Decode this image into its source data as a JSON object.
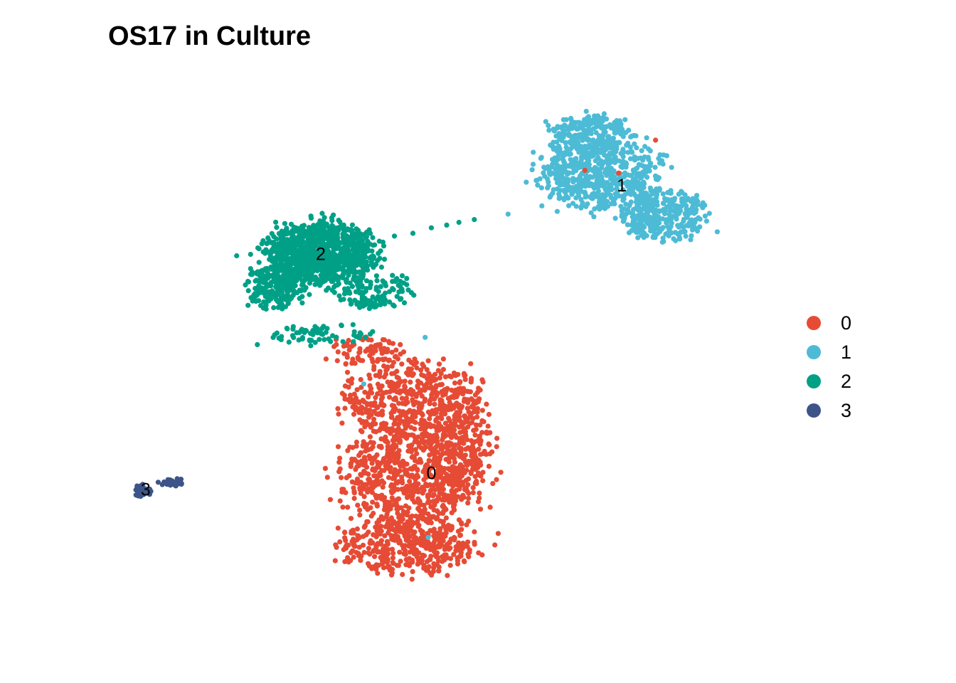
{
  "chart_data": {
    "type": "scatter",
    "title": "OS17 in Culture",
    "xlabel": "",
    "ylabel": "",
    "xlim": [
      -10,
      12
    ],
    "ylim": [
      -10,
      10
    ],
    "grid": false,
    "axes_visible": false,
    "legend_position": "right",
    "legend": {
      "entries": [
        {
          "label": "0",
          "color": "#E64B35"
        },
        {
          "label": "1",
          "color": "#4DBBD5"
        },
        {
          "label": "2",
          "color": "#00A087"
        },
        {
          "label": "3",
          "color": "#3C5488"
        }
      ]
    },
    "cluster_labels": [
      {
        "text": "0",
        "x": 0.8,
        "y": -4.2
      },
      {
        "text": "1",
        "x": 7.0,
        "y": 6.3
      },
      {
        "text": "2",
        "x": -2.8,
        "y": 3.8
      },
      {
        "text": "3",
        "x": -8.5,
        "y": -4.8
      }
    ],
    "clusters": [
      {
        "name": "0",
        "color": "#E64B35",
        "n": 1900,
        "blobs": [
          {
            "cx": 0.1,
            "cy": -1.4,
            "rx": 2.2,
            "ry": 1.4,
            "w": 0.22
          },
          {
            "cx": 0.2,
            "cy": -4.2,
            "rx": 2.3,
            "ry": 1.9,
            "w": 0.38
          },
          {
            "cx": 1.7,
            "cy": -3.0,
            "rx": 1.0,
            "ry": 2.0,
            "w": 0.14
          },
          {
            "cx": 0.0,
            "cy": -6.8,
            "rx": 2.2,
            "ry": 1.0,
            "w": 0.22
          },
          {
            "cx": -1.4,
            "cy": 0.3,
            "rx": 1.3,
            "ry": 0.5,
            "w": 0.04
          }
        ]
      },
      {
        "name": "1",
        "color": "#4DBBD5",
        "n": 1150,
        "blobs": [
          {
            "cx": 6.3,
            "cy": 6.8,
            "rx": 1.9,
            "ry": 1.3,
            "w": 0.52
          },
          {
            "cx": 8.3,
            "cy": 5.3,
            "rx": 1.3,
            "ry": 0.9,
            "w": 0.3
          },
          {
            "cx": 6.1,
            "cy": 8.2,
            "rx": 1.3,
            "ry": 0.7,
            "w": 0.18
          }
        ]
      },
      {
        "name": "2",
        "color": "#00A087",
        "n": 1400,
        "blobs": [
          {
            "cx": -2.8,
            "cy": 3.9,
            "rx": 1.7,
            "ry": 1.1,
            "w": 0.7
          },
          {
            "cx": -4.2,
            "cy": 2.7,
            "rx": 0.9,
            "ry": 0.8,
            "w": 0.16
          },
          {
            "cx": -1.0,
            "cy": 2.5,
            "rx": 1.2,
            "ry": 0.6,
            "w": 0.09
          },
          {
            "cx": -2.8,
            "cy": 0.9,
            "rx": 1.6,
            "ry": 0.35,
            "w": 0.05
          }
        ]
      },
      {
        "name": "3",
        "color": "#3C5488",
        "n": 65,
        "blobs": [
          {
            "cx": -8.6,
            "cy": -4.8,
            "rx": 0.25,
            "ry": 0.25,
            "w": 0.65
          },
          {
            "cx": -7.6,
            "cy": -4.5,
            "rx": 0.45,
            "ry": 0.2,
            "w": 0.35
          }
        ]
      }
    ],
    "bridge_points": [
      {
        "cluster": "2",
        "x": -0.4,
        "y": 4.5
      },
      {
        "cluster": "2",
        "x": 0.2,
        "y": 4.6
      },
      {
        "cluster": "2",
        "x": 0.8,
        "y": 4.8
      },
      {
        "cluster": "2",
        "x": 1.3,
        "y": 4.9
      },
      {
        "cluster": "2",
        "x": 1.7,
        "y": 5.0
      },
      {
        "cluster": "2",
        "x": 2.2,
        "y": 5.1
      },
      {
        "cluster": "1",
        "x": 3.3,
        "y": 5.3
      },
      {
        "cluster": "1",
        "x": 4.4,
        "y": 5.6
      },
      {
        "cluster": "0",
        "x": 6.9,
        "y": 6.8
      },
      {
        "cluster": "0",
        "x": 5.8,
        "y": 6.9
      },
      {
        "cluster": "0",
        "x": 8.1,
        "y": 8.0
      },
      {
        "cluster": "1",
        "x": 0.6,
        "y": 0.8
      },
      {
        "cluster": "1",
        "x": 0.7,
        "y": -6.5
      },
      {
        "cluster": "1",
        "x": -1.4,
        "y": -0.9
      }
    ]
  }
}
